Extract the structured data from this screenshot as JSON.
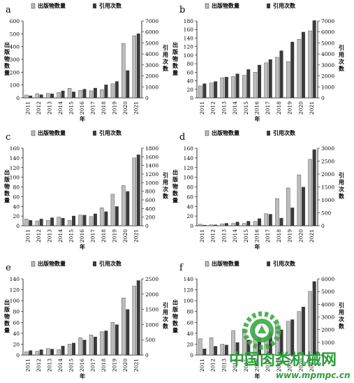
{
  "chart_data": [
    {
      "panel_label": "a",
      "type": "bar",
      "categories": [
        "2011",
        "2012",
        "2013",
        "2014",
        "2015",
        "2016",
        "2017",
        "2018",
        "2019",
        "2020",
        "2021"
      ],
      "series": [
        {
          "name": "出版物数量",
          "axis": "left",
          "values": [
            22,
            33,
            35,
            42,
            75,
            58,
            55,
            65,
            110,
            425,
            485
          ]
        },
        {
          "name": "引用次数",
          "axis": "right",
          "values": [
            200,
            300,
            380,
            650,
            560,
            800,
            900,
            1200,
            1500,
            2500,
            5850
          ]
        }
      ],
      "ylabel_left": "出版物数量",
      "ylabel_right": "引用次数",
      "xlabel": "年",
      "ylim_left": [
        0,
        600
      ],
      "yticks_left": [
        0,
        100,
        200,
        300,
        400,
        500,
        600
      ],
      "ylim_right": [
        0,
        7000
      ],
      "yticks_right": [
        0,
        1000,
        2000,
        3000,
        4000,
        5000,
        6000,
        7000
      ],
      "legend": "top"
    },
    {
      "panel_label": "b",
      "type": "bar",
      "categories": [
        "2011",
        "2012",
        "2013",
        "2014",
        "2015",
        "2016",
        "2017",
        "2018",
        "2019",
        "2020",
        "2021"
      ],
      "series": [
        {
          "name": "出版物数量",
          "axis": "left",
          "values": [
            28,
            35,
            47,
            50,
            53,
            60,
            82,
            95,
            85,
            137,
            157
          ]
        },
        {
          "name": "引用次数",
          "axis": "right",
          "values": [
            1300,
            1500,
            1900,
            2200,
            2600,
            3000,
            3500,
            4300,
            5100,
            6000,
            7050
          ]
        }
      ],
      "ylabel_left": "出版物数量",
      "ylabel_right": "引用次数",
      "xlabel": "年",
      "ylim_left": [
        0,
        180
      ],
      "yticks_left": [
        0,
        20,
        40,
        60,
        80,
        100,
        120,
        140,
        160,
        180
      ],
      "ylim_right": [
        0,
        7000
      ],
      "yticks_right": [
        0,
        1000,
        2000,
        3000,
        4000,
        5000,
        6000,
        7000
      ],
      "legend": "top"
    },
    {
      "panel_label": "c",
      "type": "bar",
      "categories": [
        "2011",
        "2012",
        "2013",
        "2014",
        "2015",
        "2016",
        "2017",
        "2018",
        "2019",
        "2020",
        "2021"
      ],
      "series": [
        {
          "name": "出版物数量",
          "axis": "left",
          "values": [
            14,
            10,
            11,
            18,
            11,
            22,
            19,
            37,
            65,
            83,
            140
          ]
        },
        {
          "name": "引用次数",
          "axis": "right",
          "values": [
            130,
            160,
            190,
            180,
            230,
            250,
            280,
            330,
            450,
            800,
            1650
          ]
        }
      ],
      "ylabel_left": "出版物数量",
      "ylabel_right": "引用次数",
      "xlabel": "年",
      "ylim_left": [
        0,
        160
      ],
      "yticks_left": [
        0,
        20,
        40,
        60,
        80,
        100,
        120,
        140,
        160
      ],
      "ylim_right": [
        0,
        1800
      ],
      "yticks_right": [
        0,
        200,
        400,
        600,
        800,
        1000,
        1200,
        1400,
        1600,
        1800
      ],
      "legend": "top"
    },
    {
      "panel_label": "d",
      "type": "bar",
      "categories": [
        "2011",
        "2012",
        "2013",
        "2014",
        "2015",
        "2016",
        "2017",
        "2018",
        "2019",
        "2020",
        "2021"
      ],
      "series": [
        {
          "name": "出版物数量",
          "axis": "left",
          "values": [
            3,
            2,
            4,
            5,
            5,
            9,
            25,
            56,
            78,
            105,
            137
          ]
        },
        {
          "name": "引用次数",
          "axis": "right",
          "values": [
            30,
            40,
            100,
            150,
            180,
            280,
            450,
            300,
            700,
            1500,
            2950
          ]
        }
      ],
      "ylabel_left": "出版物数量",
      "ylabel_right": "引用次数",
      "xlabel": "年",
      "ylim_left": [
        0,
        160
      ],
      "yticks_left": [
        0,
        20,
        40,
        60,
        80,
        100,
        120,
        140,
        160
      ],
      "ylim_right": [
        0,
        3000
      ],
      "yticks_right": [
        0,
        500,
        1000,
        1500,
        2000,
        2500,
        3000
      ],
      "legend": "top"
    },
    {
      "panel_label": "e",
      "type": "bar",
      "categories": [
        "2011",
        "2012",
        "2013",
        "2014",
        "2015",
        "2016",
        "2017",
        "2018",
        "2019",
        "2020",
        "2021"
      ],
      "series": [
        {
          "name": "出版物数量",
          "axis": "left",
          "values": [
            6,
            7,
            12,
            10,
            20,
            32,
            37,
            43,
            60,
            105,
            127
          ]
        },
        {
          "name": "引用次数",
          "axis": "right",
          "values": [
            150,
            180,
            200,
            300,
            400,
            500,
            600,
            800,
            1000,
            1500,
            2450
          ]
        }
      ],
      "ylabel_left": "出版物数量",
      "ylabel_right": "引用次数",
      "xlabel": "年",
      "ylim_left": [
        0,
        140
      ],
      "yticks_left": [
        0,
        20,
        40,
        60,
        80,
        100,
        120,
        140
      ],
      "ylim_right": [
        0,
        2500
      ],
      "yticks_right": [
        0,
        500,
        1000,
        1500,
        2000,
        2500
      ],
      "legend": "top"
    },
    {
      "panel_label": "f",
      "type": "bar",
      "categories": [
        "2011",
        "2012",
        "2013",
        "2014",
        "2015",
        "2016",
        "2017",
        "2018",
        "2019",
        "2020",
        "2021"
      ],
      "series": [
        {
          "name": "出版物数量",
          "axis": "left",
          "values": [
            30,
            32,
            20,
            45,
            48,
            55,
            55,
            60,
            62,
            80,
            117
          ]
        },
        {
          "name": "引用次数",
          "axis": "right",
          "values": [
            500,
            700,
            800,
            1000,
            1200,
            1500,
            1800,
            2000,
            2800,
            3800,
            5800
          ]
        }
      ],
      "ylabel_left": "出版物数量",
      "ylabel_right": "引用次数",
      "xlabel": "年",
      "ylim_left": [
        0,
        140
      ],
      "yticks_left": [
        0,
        20,
        40,
        60,
        80,
        100,
        120,
        140
      ],
      "ylim_right": [
        0,
        6000
      ],
      "yticks_right": [
        0,
        1000,
        2000,
        3000,
        4000,
        5000,
        6000
      ],
      "legend": "top"
    }
  ],
  "watermark": {
    "text_cn": "中国肉类机械网",
    "url": "www.mpmpc.cn",
    "color_cn": "#2e9e3c",
    "color_logo": "#3bab44"
  },
  "colors": {
    "pub_bar": "#bdbdbd",
    "cite_bar": "#3a3a3a",
    "axis": "#000000"
  }
}
